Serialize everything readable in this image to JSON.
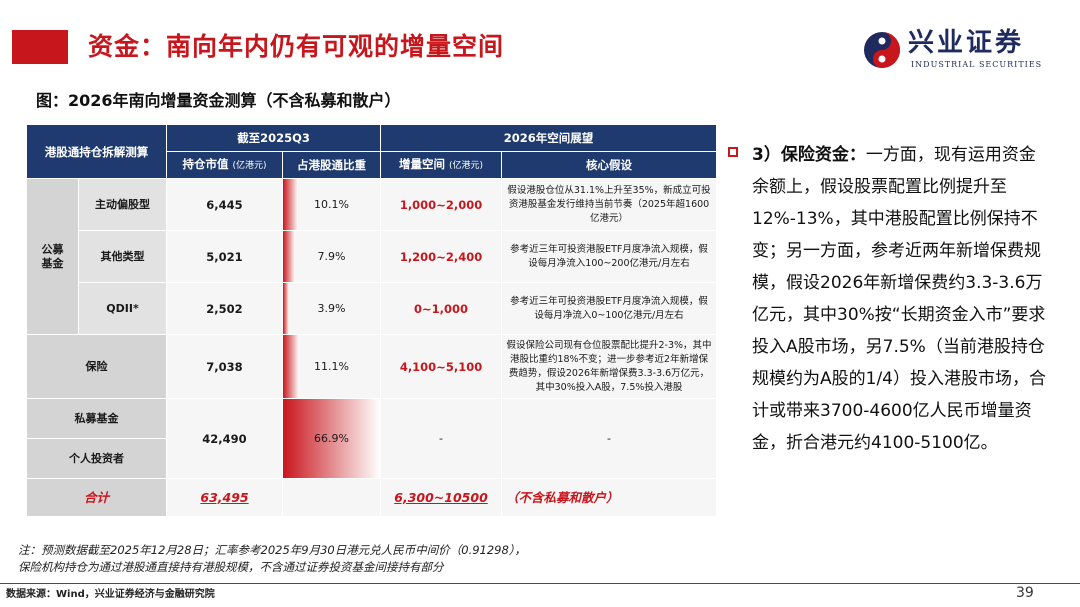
{
  "header": {
    "title": "资金：南向年内仍有可观的增量空间",
    "logo_cn": "兴业证券",
    "logo_en": "INDUSTRIAL SECURITIES"
  },
  "figure_title": "图：2026年南向增量资金测算（不含私募和散户）",
  "table": {
    "h_breakdown": "港股通持仓拆解测算",
    "h_as_of": "截至2025Q3",
    "h_outlook": "2026年空间展望",
    "h_market_value": "持仓市值",
    "h_market_value_unit": "(亿港元)",
    "h_ratio": "占港股通比重",
    "h_increment": "增量空间",
    "h_increment_unit": "(亿港元)",
    "h_assumption": "核心假设",
    "group_public_fund": "公募\n基金",
    "rows": [
      {
        "label": "主动偏股型",
        "value": "6,445",
        "ratio": "10.1%",
        "ratio_pct": 10.1,
        "increment": "1,000~2,000",
        "assumption": "假设港股仓位从31.1%上升至35%，新成立可投资港股基金发行维持当前节奏（2025年超1600亿港元）"
      },
      {
        "label": "其他类型",
        "value": "5,021",
        "ratio": "7.9%",
        "ratio_pct": 7.9,
        "increment": "1,200~2,400",
        "assumption": "参考近三年可投资港股ETF月度净流入规模，假设每月净流入100~200亿港元/月左右"
      },
      {
        "label": "QDII*",
        "value": "2,502",
        "ratio": "3.9%",
        "ratio_pct": 3.9,
        "increment": "0~1,000",
        "assumption": "参考近三年可投资港股ETF月度净流入规模，假设每月净流入0~100亿港元/月左右"
      },
      {
        "label": "保险",
        "value": "7,038",
        "ratio": "11.1%",
        "ratio_pct": 11.1,
        "increment": "4,100~5,100",
        "assumption": "假设保险公司现有仓位股票配比提升2-3%，其中港股比重约18%不变；进一步参考近2年新增保费趋势，假设2026年新增保费3.3-3.6万亿元，其中30%投入A股，7.5%投入港股"
      }
    ],
    "private_fund_label": "私募基金",
    "retail_label": "个人投资者",
    "combined_value": "42,490",
    "combined_ratio": "66.9%",
    "combined_ratio_pct": 66.9,
    "combined_increment": "-",
    "combined_assumption": "-",
    "total_label": "合计",
    "total_value": "63,495",
    "total_increment": "6,300~10500",
    "total_note": "（不含私募和散户）"
  },
  "commentary": {
    "heading": "3）保险资金：",
    "body": "一方面，现有运用资金余额上，假设股票配置比例提升至12%-13%，其中港股配置比例保持不变；另一方面，参考近两年新增保费规模，假设2026年新增保费约3.3-3.6万亿元，其中30%按“长期资金入市”要求投入A股市场，另7.5%（当前港股持仓规模约为A股的1/4）投入港股市场，合计或带来3700-4600亿人民币增量资金，折合港元约4100-5100亿。"
  },
  "footnote_1": "注：预测数据截至2025年12月28日；汇率参考2025年9月30日港元兑人民币中间价（0.91298），",
  "footnote_2": "保险机构持仓为通过港股通直接持有港股规模，不含通过证券投资基金间接持有部分",
  "source": "数据来源：Wind，兴业证券经济与金融研究院",
  "page_number": "39",
  "colors": {
    "brand_red": "#c8161d",
    "header_navy": "#1f3a6e",
    "logo_navy": "#1f2a5e"
  }
}
